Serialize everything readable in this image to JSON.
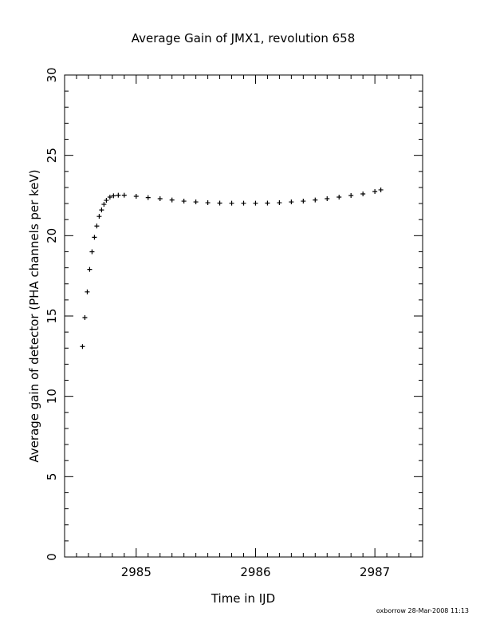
{
  "chart_data": {
    "type": "scatter",
    "title": "Average Gain of JMX1, revolution 658",
    "xlabel": "Time in IJD",
    "ylabel": "Average gain of detector (PHA channels per keV)",
    "xlim": [
      2984.4,
      2987.4
    ],
    "ylim": [
      0,
      30
    ],
    "xticks": [
      2985,
      2986,
      2987
    ],
    "yticks": [
      0,
      5,
      10,
      15,
      20,
      25,
      30
    ],
    "xtick_labels": [
      "2985",
      "2986",
      "2987"
    ],
    "ytick_labels": [
      "0",
      "5",
      "10",
      "15",
      "20",
      "25",
      "30"
    ],
    "marker": "plus",
    "grid": false,
    "series": [
      {
        "x": [
          2984.55,
          2984.57,
          2984.59,
          2984.61,
          2984.63,
          2984.65,
          2984.67,
          2984.69,
          2984.71,
          2984.73,
          2984.75,
          2984.78,
          2984.81,
          2984.85,
          2984.9,
          2985.0,
          2985.1,
          2985.2,
          2985.3,
          2985.4,
          2985.5,
          2985.6,
          2985.7,
          2985.8,
          2985.9,
          2986.0,
          2986.1,
          2986.2,
          2986.3,
          2986.4,
          2986.5,
          2986.6,
          2986.7,
          2986.8,
          2986.9,
          2987.0,
          2987.05
        ],
        "y": [
          13.1,
          14.9,
          16.5,
          17.9,
          19.0,
          19.9,
          20.6,
          21.2,
          21.6,
          21.95,
          22.2,
          22.4,
          22.48,
          22.52,
          22.52,
          22.45,
          22.37,
          22.3,
          22.22,
          22.15,
          22.1,
          22.05,
          22.03,
          22.02,
          22.02,
          22.02,
          22.03,
          22.05,
          22.1,
          22.15,
          22.22,
          22.3,
          22.4,
          22.5,
          22.6,
          22.75,
          22.85
        ]
      }
    ]
  },
  "footer": {
    "stamp": "oxborrow 28-Mar-2008 11:13"
  }
}
